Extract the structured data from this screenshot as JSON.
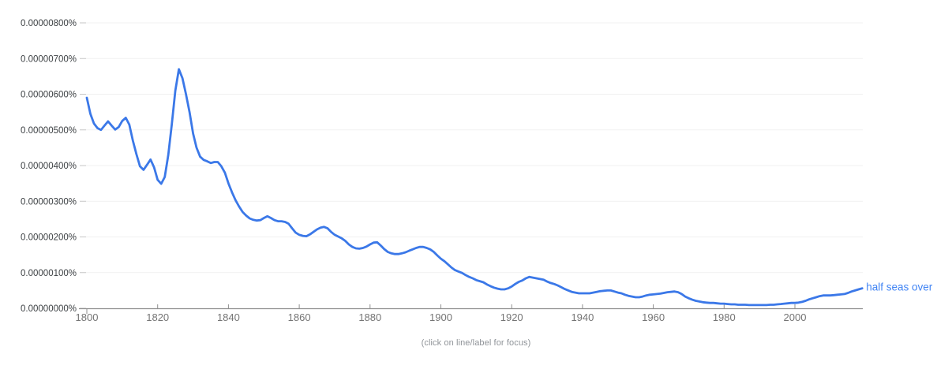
{
  "chart": {
    "caption": "(click on line/label for focus)",
    "series_label": "half seas over"
  },
  "colors": {
    "line": "#3b78e8",
    "series_label_text": "#4285f4",
    "gridline": "#f1f1f1",
    "tick_dash": "#c6c6c6",
    "axis": "#8f8f8f",
    "x_label_text": "#757575",
    "y_label_text": "#3c4043",
    "caption_text": "#8f9398",
    "background": "#ffffff"
  },
  "chart_data": {
    "type": "line",
    "title": "",
    "xlabel": "",
    "ylabel": "",
    "grid": true,
    "legend_position": "inline label at right end of line",
    "caption": "(click on line/label for focus)",
    "x_ticks": [
      1800,
      1820,
      1840,
      1860,
      1880,
      1900,
      1920,
      1940,
      1960,
      1980,
      2000
    ],
    "y_tick_labels": [
      "0.00000000%",
      "0.00000100%",
      "0.00000200%",
      "0.00000300%",
      "0.00000400%",
      "0.00000500%",
      "0.00000600%",
      "0.00000700%",
      "0.00000800%"
    ],
    "ylim_e8": [
      0,
      800
    ],
    "y_values_unit": "1e-8 percent (590 = 0.00000590%)",
    "x_start": 1800,
    "x_end": 2019,
    "x_step": 1,
    "series": [
      {
        "name": "half seas over",
        "color": "#3b78e8",
        "values_e8": [
          590,
          545,
          518,
          505,
          500,
          512,
          524,
          512,
          501,
          508,
          525,
          534,
          515,
          470,
          432,
          398,
          388,
          402,
          417,
          395,
          360,
          349,
          368,
          430,
          515,
          610,
          670,
          645,
          600,
          550,
          490,
          450,
          425,
          416,
          412,
          407,
          410,
          410,
          398,
          380,
          350,
          325,
          303,
          285,
          270,
          260,
          252,
          248,
          246,
          247,
          253,
          258,
          253,
          247,
          244,
          244,
          242,
          237,
          224,
          212,
          206,
          203,
          202,
          207,
          214,
          221,
          226,
          228,
          224,
          214,
          206,
          201,
          196,
          189,
          179,
          172,
          168,
          167,
          169,
          173,
          179,
          184,
          185,
          176,
          166,
          158,
          154,
          152,
          152,
          154,
          157,
          161,
          165,
          169,
          172,
          172,
          169,
          165,
          158,
          148,
          139,
          132,
          123,
          114,
          107,
          103,
          99,
          93,
          88,
          84,
          79,
          76,
          73,
          67,
          62,
          58,
          55,
          53,
          53,
          56,
          61,
          68,
          74,
          78,
          84,
          88,
          86,
          84,
          82,
          80,
          75,
          71,
          68,
          64,
          59,
          54,
          50,
          46,
          44,
          42,
          42,
          42,
          42,
          44,
          46,
          48,
          49,
          50,
          50,
          47,
          44,
          42,
          38,
          35,
          33,
          31,
          31,
          33,
          36,
          38,
          39,
          40,
          41,
          43,
          45,
          46,
          47,
          45,
          40,
          33,
          28,
          24,
          21,
          19,
          17,
          16,
          15,
          15,
          14,
          13,
          13,
          12,
          11,
          11,
          10,
          10,
          10,
          9,
          9,
          9,
          9,
          9,
          9,
          10,
          10,
          11,
          12,
          13,
          14,
          15,
          15,
          16,
          18,
          21,
          25,
          28,
          31,
          34,
          36,
          36,
          36,
          37,
          38,
          39,
          40,
          43,
          47,
          50,
          53,
          56
        ]
      }
    ]
  }
}
